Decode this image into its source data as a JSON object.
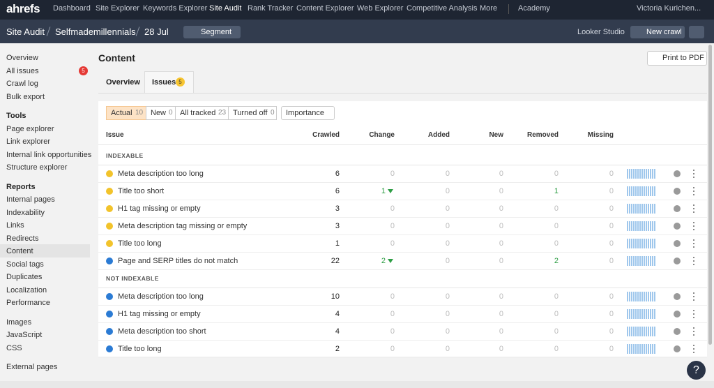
{
  "top_nav": {
    "logo": "ahrefs",
    "items": [
      "Dashboard",
      "Site Explorer",
      "Keywords Explorer",
      "Site Audit",
      "Rank Tracker",
      "Content Explorer",
      "Web Explorer",
      "Competitive Analysis",
      "More"
    ],
    "active": 3,
    "academy": "Academy",
    "user": "Victoria Kurichen..."
  },
  "header": {
    "breadcrumb": [
      "Site Audit",
      "Selfmademillennials",
      "28 Jul"
    ],
    "segment": "Segment",
    "looker": "Looker Studio",
    "new_crawl": "New crawl"
  },
  "sidebar": {
    "groups": [
      {
        "items": [
          {
            "label": "Overview"
          },
          {
            "label": "All issues",
            "badge": 5
          },
          {
            "label": "Crawl log"
          },
          {
            "label": "Bulk export"
          }
        ]
      },
      {
        "title": "Tools",
        "items": [
          {
            "label": "Page explorer"
          },
          {
            "label": "Link explorer"
          },
          {
            "label": "Internal link opportunities"
          },
          {
            "label": "Structure explorer"
          }
        ]
      },
      {
        "title": "Reports",
        "items": [
          {
            "label": "Internal pages"
          },
          {
            "label": "Indexability"
          },
          {
            "label": "Links"
          },
          {
            "label": "Redirects"
          },
          {
            "label": "Content",
            "active": true
          },
          {
            "label": "Social tags"
          },
          {
            "label": "Duplicates"
          },
          {
            "label": "Localization"
          },
          {
            "label": "Performance"
          }
        ]
      },
      {
        "items": [
          {
            "label": "Images"
          },
          {
            "label": "JavaScript"
          },
          {
            "label": "CSS"
          }
        ]
      },
      {
        "items": [
          {
            "label": "External pages"
          }
        ]
      }
    ]
  },
  "page": {
    "title": "Content",
    "print": "Print to PDF",
    "tabs": [
      {
        "label": "Overview"
      },
      {
        "label": "Issues",
        "badge": 5,
        "active": true
      }
    ],
    "filters": [
      {
        "label": "Actual",
        "count": 10,
        "active": true
      },
      {
        "label": "New",
        "count": 0
      },
      {
        "label": "All tracked",
        "count": 23
      },
      {
        "label": "Turned off",
        "count": 0
      }
    ],
    "importance": "Importance"
  },
  "table": {
    "columns": [
      "Issue",
      "Crawled",
      "Change",
      "Added",
      "New",
      "Removed",
      "Missing"
    ],
    "groups": [
      {
        "title": "INDEXABLE",
        "rows": [
          {
            "icon": "warning",
            "issue": "Meta description too long",
            "crawled": 6,
            "change": 0,
            "added": 0,
            "new": 0,
            "removed": 0,
            "missing": 0
          },
          {
            "icon": "warning",
            "issue": "Title too short",
            "crawled": 6,
            "change": 1,
            "added": 0,
            "new": 0,
            "removed": 1,
            "missing": 0
          },
          {
            "icon": "warning",
            "issue": "H1 tag missing or empty",
            "crawled": 3,
            "change": 0,
            "added": 0,
            "new": 0,
            "removed": 0,
            "missing": 0
          },
          {
            "icon": "warning",
            "issue": "Meta description tag missing or empty",
            "crawled": 3,
            "change": 0,
            "added": 0,
            "new": 0,
            "removed": 0,
            "missing": 0
          },
          {
            "icon": "warning",
            "issue": "Title too long",
            "crawled": 1,
            "change": 0,
            "added": 0,
            "new": 0,
            "removed": 0,
            "missing": 0
          },
          {
            "icon": "notice",
            "issue": "Page and SERP titles do not match",
            "crawled": 22,
            "change": 2,
            "added": 0,
            "new": 0,
            "removed": 2,
            "missing": 0
          }
        ]
      },
      {
        "title": "NOT INDEXABLE",
        "rows": [
          {
            "icon": "notice",
            "issue": "Meta description too long",
            "crawled": 10,
            "change": 0,
            "added": 0,
            "new": 0,
            "removed": 0,
            "missing": 0
          },
          {
            "icon": "notice",
            "issue": "H1 tag missing or empty",
            "crawled": 4,
            "change": 0,
            "added": 0,
            "new": 0,
            "removed": 0,
            "missing": 0
          },
          {
            "icon": "notice",
            "issue": "Meta description too short",
            "crawled": 4,
            "change": 0,
            "added": 0,
            "new": 0,
            "removed": 0,
            "missing": 0
          },
          {
            "icon": "notice",
            "issue": "Title too long",
            "crawled": 2,
            "change": 0,
            "added": 0,
            "new": 0,
            "removed": 0,
            "missing": 0
          }
        ]
      }
    ]
  },
  "help_button": "?"
}
